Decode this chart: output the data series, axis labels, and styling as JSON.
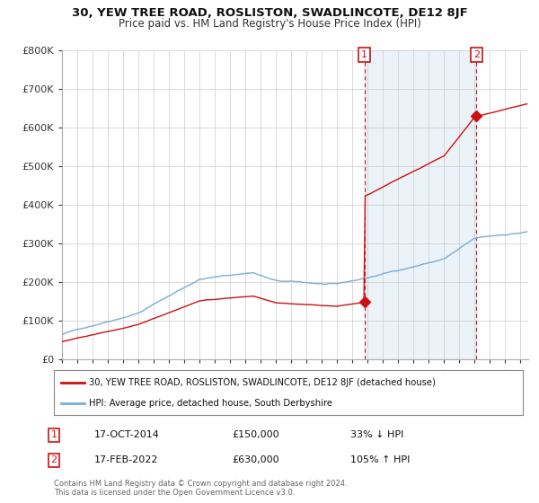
{
  "title": "30, YEW TREE ROAD, ROSLISTON, SWADLINCOTE, DE12 8JF",
  "subtitle": "Price paid vs. HM Land Registry's House Price Index (HPI)",
  "ylabel_ticks": [
    "£0",
    "£100K",
    "£200K",
    "£300K",
    "£400K",
    "£500K",
    "£600K",
    "£700K",
    "£800K"
  ],
  "ylim": [
    0,
    800000
  ],
  "xlim_start": 1995.0,
  "xlim_end": 2025.5,
  "hpi_color": "#7aaed6",
  "sale_color": "#cc1111",
  "shade_color": "#ddeeff",
  "point1_x": 2014.79,
  "point1_y": 150000,
  "point1_label": "1",
  "point2_x": 2022.12,
  "point2_y": 630000,
  "point2_label": "2",
  "vline1_x": 2014.79,
  "vline2_x": 2022.12,
  "legend_line1": "30, YEW TREE ROAD, ROSLISTON, SWADLINCOTE, DE12 8JF (detached house)",
  "legend_line2": "HPI: Average price, detached house, South Derbyshire",
  "annotation1_date": "17-OCT-2014",
  "annotation1_price": "£150,000",
  "annotation1_hpi": "33% ↓ HPI",
  "annotation2_date": "17-FEB-2022",
  "annotation2_price": "£630,000",
  "annotation2_hpi": "105% ↑ HPI",
  "footer": "Contains HM Land Registry data © Crown copyright and database right 2024.\nThis data is licensed under the Open Government Licence v3.0.",
  "bg_color": "#ffffff",
  "grid_color": "#cccccc"
}
